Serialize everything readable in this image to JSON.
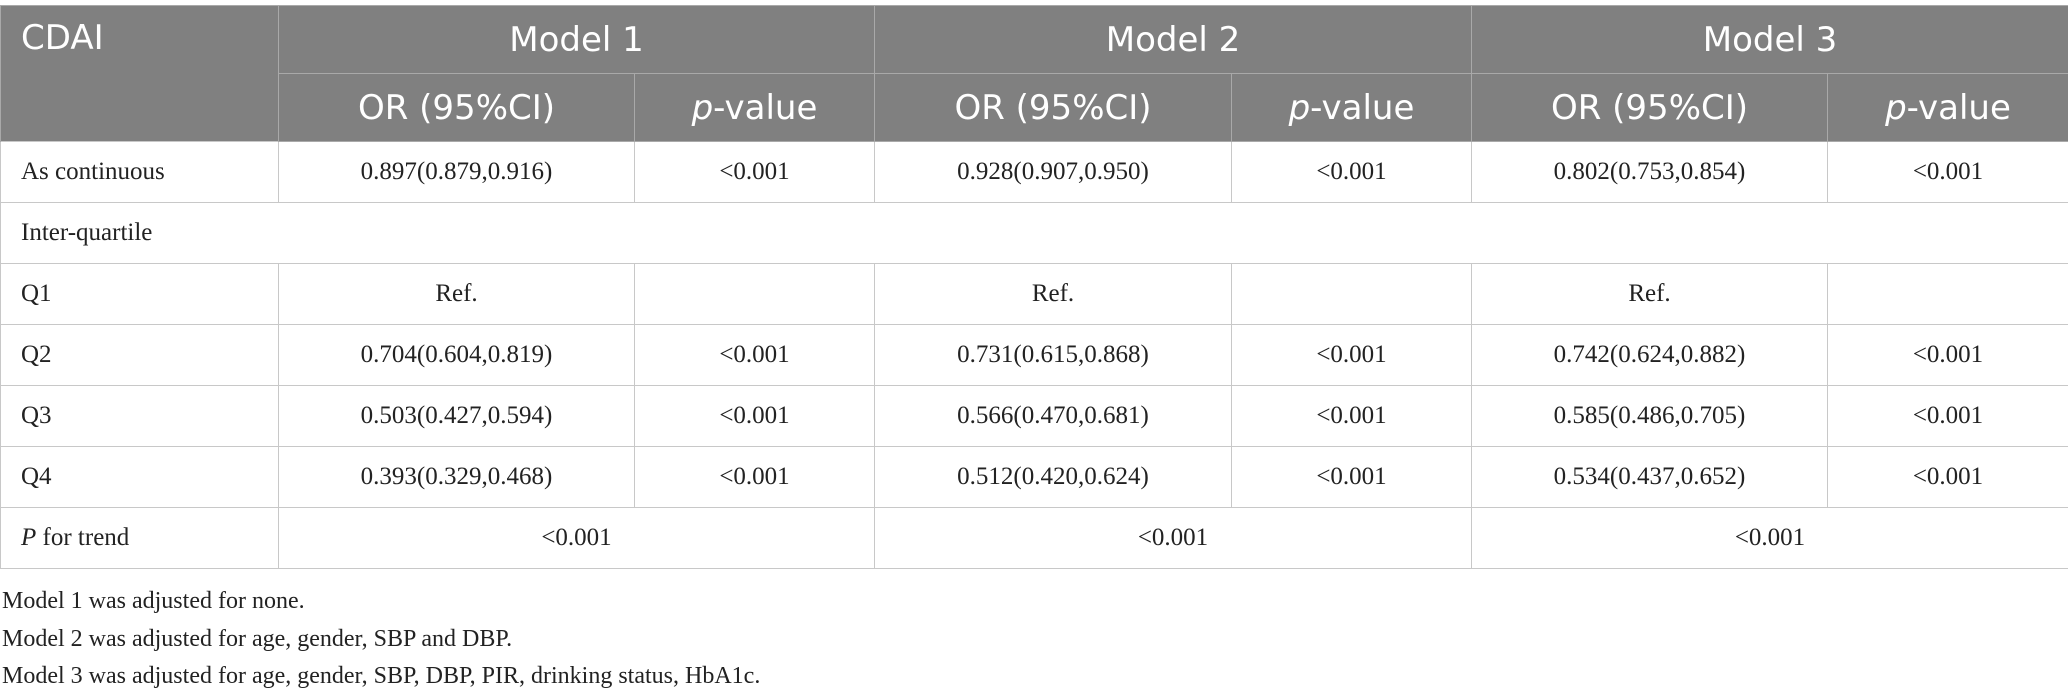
{
  "table": {
    "header": {
      "stub": "CDAI",
      "models": [
        "Model 1",
        "Model 2",
        "Model 3"
      ],
      "subheaders": [
        "OR (95%CI)",
        {
          "italic": "p",
          "rest": "-value"
        },
        "OR (95%CI)",
        {
          "italic": "p",
          "rest": "-value"
        },
        "OR (95%CI)",
        {
          "italic": "p",
          "rest": "-value"
        }
      ]
    },
    "rows": [
      {
        "label": "As continuous",
        "cells": [
          "0.897(0.879,0.916)",
          "<0.001",
          "0.928(0.907,0.950)",
          "<0.001",
          "0.802(0.753,0.854)",
          "<0.001"
        ]
      },
      {
        "label": "Inter-quartile"
      },
      {
        "label": "Q1",
        "cells": [
          "Ref.",
          null,
          "Ref.",
          null,
          "Ref.",
          null
        ]
      },
      {
        "label": "Q2",
        "cells": [
          "0.704(0.604,0.819)",
          "<0.001",
          "0.731(0.615,0.868)",
          "<0.001",
          "0.742(0.624,0.882)",
          "<0.001"
        ]
      },
      {
        "label": "Q3",
        "cells": [
          "0.503(0.427,0.594)",
          "<0.001",
          "0.566(0.470,0.681)",
          "<0.001",
          "0.585(0.486,0.705)",
          "<0.001"
        ]
      },
      {
        "label": "Q4",
        "cells": [
          "0.393(0.329,0.468)",
          "<0.001",
          "0.512(0.420,0.624)",
          "<0.001",
          "0.534(0.437,0.652)",
          "<0.001"
        ]
      },
      {
        "label": {
          "italic": "P",
          "rest": " for trend"
        },
        "cells": [
          "<0.001",
          "<0.001",
          "<0.001"
        ]
      }
    ],
    "notes": [
      "Model 1 was adjusted for none.",
      "Model 2 was adjusted for age, gender, SBP and DBP.",
      "Model 3 was adjusted for age, gender, SBP, DBP, PIR, drinking status, HbA1c."
    ]
  }
}
